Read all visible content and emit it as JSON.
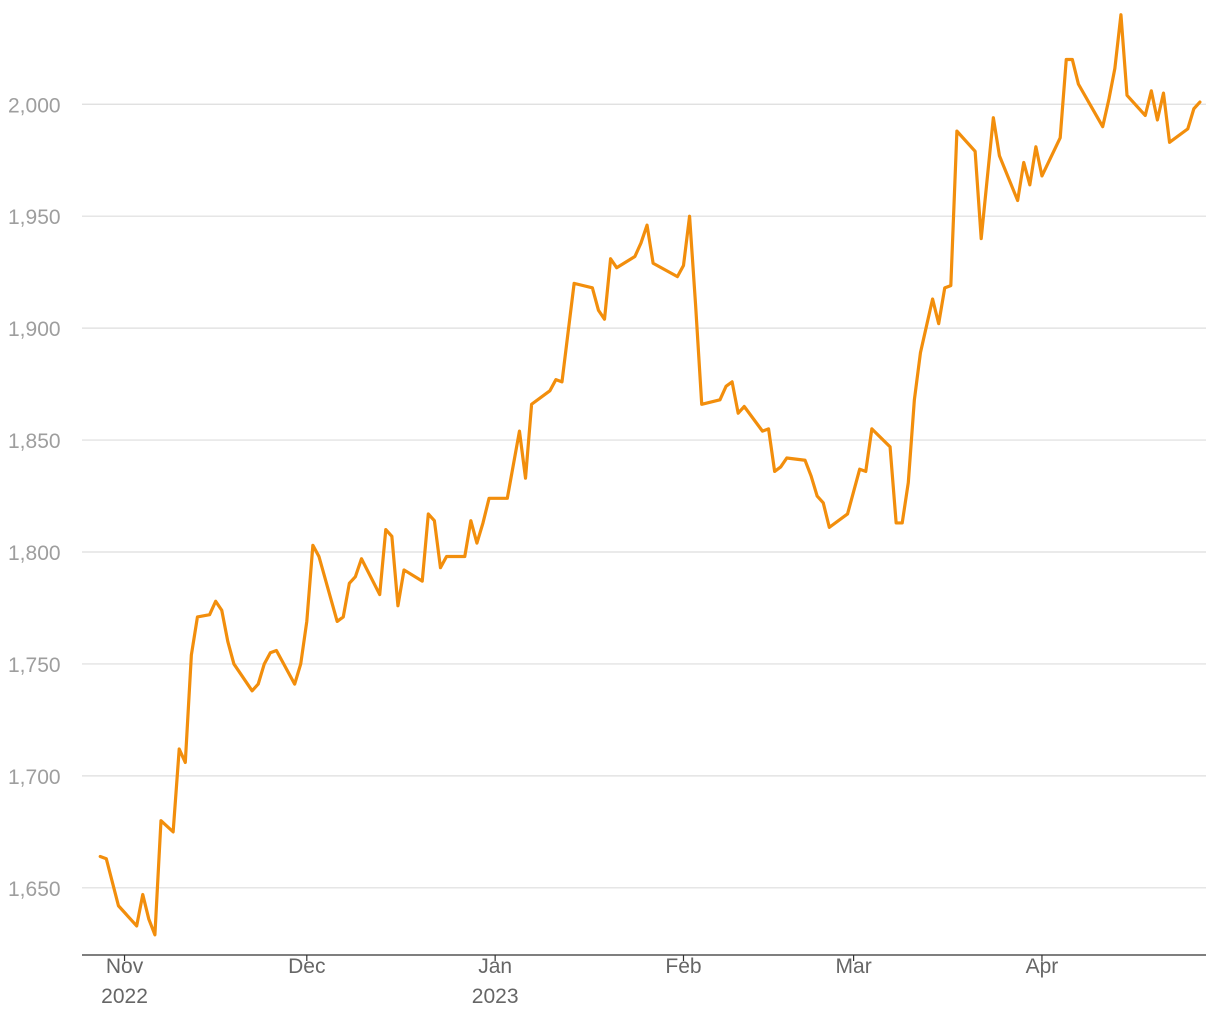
{
  "chart_data": {
    "type": "line",
    "title": "",
    "xlabel": "",
    "ylabel": "",
    "ylim": [
      1620,
      2043
    ],
    "xlim": [
      "2022-10-25",
      "2023-04-28"
    ],
    "grid": true,
    "line_color": "#f28e0c",
    "y_ticks": [
      {
        "value": 1650,
        "label": "1,650"
      },
      {
        "value": 1700,
        "label": "1,700"
      },
      {
        "value": 1750,
        "label": "1,750"
      },
      {
        "value": 1800,
        "label": "1,800"
      },
      {
        "value": 1850,
        "label": "1,850"
      },
      {
        "value": 1900,
        "label": "1,900"
      },
      {
        "value": 1950,
        "label": "1,950"
      },
      {
        "value": 2000,
        "label": "2,000"
      }
    ],
    "x_ticks": [
      {
        "date": "2022-11-01",
        "label": "Nov",
        "sublabel": "2022"
      },
      {
        "date": "2022-12-01",
        "label": "Dec",
        "sublabel": ""
      },
      {
        "date": "2023-01-01",
        "label": "Jan",
        "sublabel": "2023"
      },
      {
        "date": "2023-02-01",
        "label": "Feb",
        "sublabel": ""
      },
      {
        "date": "2023-03-01",
        "label": "Mar",
        "sublabel": ""
      },
      {
        "date": "2023-04-01",
        "label": "Apr",
        "sublabel": ""
      }
    ],
    "series": [
      {
        "points": [
          [
            "2022-10-28",
            1664
          ],
          [
            "2022-10-29",
            1663
          ],
          [
            "2022-10-31",
            1642
          ],
          [
            "2022-11-03",
            1633
          ],
          [
            "2022-11-04",
            1647
          ],
          [
            "2022-11-05",
            1636
          ],
          [
            "2022-11-06",
            1629
          ],
          [
            "2022-11-07",
            1680
          ],
          [
            "2022-11-09",
            1675
          ],
          [
            "2022-11-10",
            1712
          ],
          [
            "2022-11-11",
            1706
          ],
          [
            "2022-11-12",
            1754
          ],
          [
            "2022-11-13",
            1771
          ],
          [
            "2022-11-15",
            1772
          ],
          [
            "2022-11-16",
            1778
          ],
          [
            "2022-11-17",
            1774
          ],
          [
            "2022-11-18",
            1760
          ],
          [
            "2022-11-19",
            1750
          ],
          [
            "2022-11-22",
            1738
          ],
          [
            "2022-11-23",
            1741
          ],
          [
            "2022-11-24",
            1750
          ],
          [
            "2022-11-25",
            1755
          ],
          [
            "2022-11-26",
            1756
          ],
          [
            "2022-11-29",
            1741
          ],
          [
            "2022-11-30",
            1750
          ],
          [
            "2022-12-01",
            1769
          ],
          [
            "2022-12-02",
            1803
          ],
          [
            "2022-12-03",
            1798
          ],
          [
            "2022-12-06",
            1769
          ],
          [
            "2022-12-07",
            1771
          ],
          [
            "2022-12-08",
            1786
          ],
          [
            "2022-12-09",
            1789
          ],
          [
            "2022-12-10",
            1797
          ],
          [
            "2022-12-13",
            1781
          ],
          [
            "2022-12-14",
            1810
          ],
          [
            "2022-12-15",
            1807
          ],
          [
            "2022-12-16",
            1776
          ],
          [
            "2022-12-17",
            1792
          ],
          [
            "2022-12-20",
            1787
          ],
          [
            "2022-12-21",
            1817
          ],
          [
            "2022-12-22",
            1814
          ],
          [
            "2022-12-23",
            1793
          ],
          [
            "2022-12-24",
            1798
          ],
          [
            "2022-12-27",
            1798
          ],
          [
            "2022-12-28",
            1814
          ],
          [
            "2022-12-29",
            1804
          ],
          [
            "2022-12-30",
            1813
          ],
          [
            "2022-12-31",
            1824
          ],
          [
            "2023-01-03",
            1824
          ],
          [
            "2023-01-05",
            1854
          ],
          [
            "2023-01-06",
            1833
          ],
          [
            "2023-01-07",
            1866
          ],
          [
            "2023-01-10",
            1872
          ],
          [
            "2023-01-11",
            1877
          ],
          [
            "2023-01-12",
            1876
          ],
          [
            "2023-01-13",
            1898
          ],
          [
            "2023-01-14",
            1920
          ],
          [
            "2023-01-17",
            1918
          ],
          [
            "2023-01-18",
            1908
          ],
          [
            "2023-01-19",
            1904
          ],
          [
            "2023-01-20",
            1931
          ],
          [
            "2023-01-21",
            1927
          ],
          [
            "2023-01-24",
            1932
          ],
          [
            "2023-01-25",
            1938
          ],
          [
            "2023-01-26",
            1946
          ],
          [
            "2023-01-27",
            1929
          ],
          [
            "2023-01-31",
            1923
          ],
          [
            "2023-02-01",
            1928
          ],
          [
            "2023-02-02",
            1950
          ],
          [
            "2023-02-03",
            1910
          ],
          [
            "2023-02-04",
            1866
          ],
          [
            "2023-02-07",
            1868
          ],
          [
            "2023-02-08",
            1874
          ],
          [
            "2023-02-09",
            1876
          ],
          [
            "2023-02-10",
            1862
          ],
          [
            "2023-02-11",
            1865
          ],
          [
            "2023-02-14",
            1854
          ],
          [
            "2023-02-15",
            1855
          ],
          [
            "2023-02-16",
            1836
          ],
          [
            "2023-02-17",
            1838
          ],
          [
            "2023-02-18",
            1842
          ],
          [
            "2023-02-21",
            1841
          ],
          [
            "2023-02-22",
            1834
          ],
          [
            "2023-02-23",
            1825
          ],
          [
            "2023-02-24",
            1822
          ],
          [
            "2023-02-25",
            1811
          ],
          [
            "2023-02-28",
            1817
          ],
          [
            "2023-03-02",
            1837
          ],
          [
            "2023-03-03",
            1836
          ],
          [
            "2023-03-04",
            1855
          ],
          [
            "2023-03-07",
            1847
          ],
          [
            "2023-03-08",
            1813
          ],
          [
            "2023-03-09",
            1813
          ],
          [
            "2023-03-10",
            1831
          ],
          [
            "2023-03-11",
            1868
          ],
          [
            "2023-03-12",
            1889
          ],
          [
            "2023-03-14",
            1913
          ],
          [
            "2023-03-15",
            1902
          ],
          [
            "2023-03-16",
            1918
          ],
          [
            "2023-03-17",
            1919
          ],
          [
            "2023-03-18",
            1988
          ],
          [
            "2023-03-21",
            1979
          ],
          [
            "2023-03-22",
            1940
          ],
          [
            "2023-03-24",
            1994
          ],
          [
            "2023-03-25",
            1977
          ],
          [
            "2023-03-28",
            1957
          ],
          [
            "2023-03-29",
            1974
          ],
          [
            "2023-03-30",
            1964
          ],
          [
            "2023-03-31",
            1981
          ],
          [
            "2023-04-01",
            1968
          ],
          [
            "2023-04-04",
            1985
          ],
          [
            "2023-04-05",
            2020
          ],
          [
            "2023-04-06",
            2020
          ],
          [
            "2023-04-07",
            2009
          ],
          [
            "2023-04-11",
            1990
          ],
          [
            "2023-04-12",
            2002
          ],
          [
            "2023-04-13",
            2016
          ],
          [
            "2023-04-14",
            2040
          ],
          [
            "2023-04-15",
            2004
          ],
          [
            "2023-04-18",
            1995
          ],
          [
            "2023-04-19",
            2006
          ],
          [
            "2023-04-20",
            1993
          ],
          [
            "2023-04-21",
            2005
          ],
          [
            "2023-04-22",
            1983
          ],
          [
            "2023-04-25",
            1989
          ],
          [
            "2023-04-26",
            1998
          ],
          [
            "2023-04-27",
            2001
          ]
        ]
      }
    ]
  }
}
